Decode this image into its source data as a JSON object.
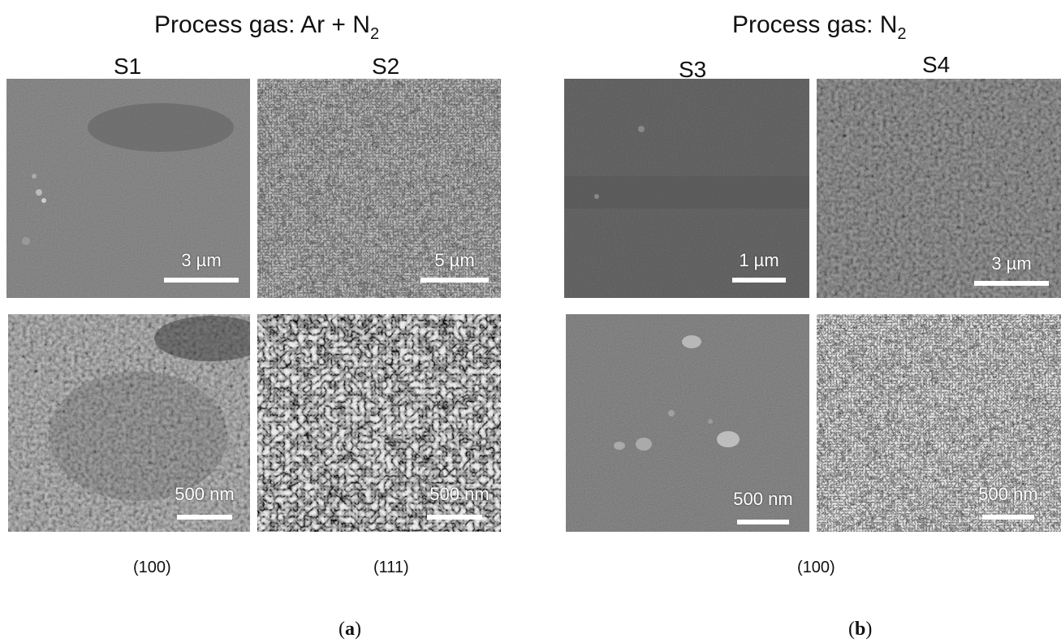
{
  "groups": [
    {
      "title_main": "Process gas: Ar + N",
      "title_sub": "2",
      "panel_letter": "a"
    },
    {
      "title_main": "Process gas: N",
      "title_sub": "2",
      "panel_letter": "b"
    }
  ],
  "samples": [
    "S1",
    "S2",
    "S3",
    "S4"
  ],
  "scale_bars": {
    "s1_top": "3 µm",
    "s2_top": "5 µm",
    "s3_top": "1 µm",
    "s4_top": "3 µm",
    "s1_bottom": "500 nm",
    "s2_bottom": "500 nm",
    "s3_bottom": "500 nm",
    "s4_bottom": "500 nm"
  },
  "orientations": {
    "a_left": "(100)",
    "a_right": "(111)",
    "b": "(100)"
  },
  "colors": {
    "sem_dark": "#4a4a4a",
    "sem_light": "#8a8a8a",
    "bar": "#ffffff"
  }
}
